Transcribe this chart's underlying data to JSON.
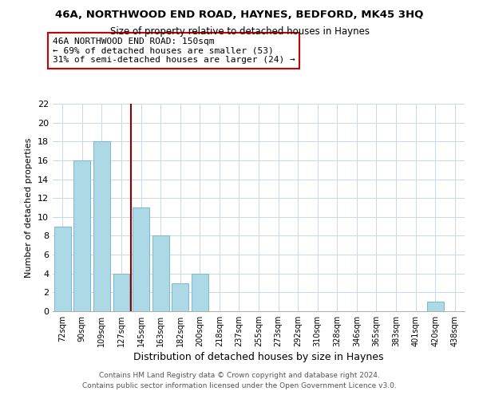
{
  "title": "46A, NORTHWOOD END ROAD, HAYNES, BEDFORD, MK45 3HQ",
  "subtitle": "Size of property relative to detached houses in Haynes",
  "xlabel": "Distribution of detached houses by size in Haynes",
  "ylabel": "Number of detached properties",
  "bar_labels": [
    "72sqm",
    "90sqm",
    "109sqm",
    "127sqm",
    "145sqm",
    "163sqm",
    "182sqm",
    "200sqm",
    "218sqm",
    "237sqm",
    "255sqm",
    "273sqm",
    "292sqm",
    "310sqm",
    "328sqm",
    "346sqm",
    "365sqm",
    "383sqm",
    "401sqm",
    "420sqm",
    "438sqm"
  ],
  "bar_values": [
    9,
    16,
    18,
    4,
    11,
    8,
    3,
    4,
    0,
    0,
    0,
    0,
    0,
    0,
    0,
    0,
    0,
    0,
    0,
    1,
    0
  ],
  "bar_color": "#add8e6",
  "bar_edge_color": "#7ab8d4",
  "ylim": [
    0,
    22
  ],
  "yticks": [
    0,
    2,
    4,
    6,
    8,
    10,
    12,
    14,
    16,
    18,
    20,
    22
  ],
  "vline_x": 3.5,
  "vline_color": "#8b0000",
  "annotation_title": "46A NORTHWOOD END ROAD: 150sqm",
  "annotation_line1": "← 69% of detached houses are smaller (53)",
  "annotation_line2": "31% of semi-detached houses are larger (24) →",
  "annotation_box_color": "#ffffff",
  "annotation_box_edge": "#cc0000",
  "footer_line1": "Contains HM Land Registry data © Crown copyright and database right 2024.",
  "footer_line2": "Contains public sector information licensed under the Open Government Licence v3.0.",
  "bg_color": "#ffffff",
  "grid_color": "#c8d8e8"
}
